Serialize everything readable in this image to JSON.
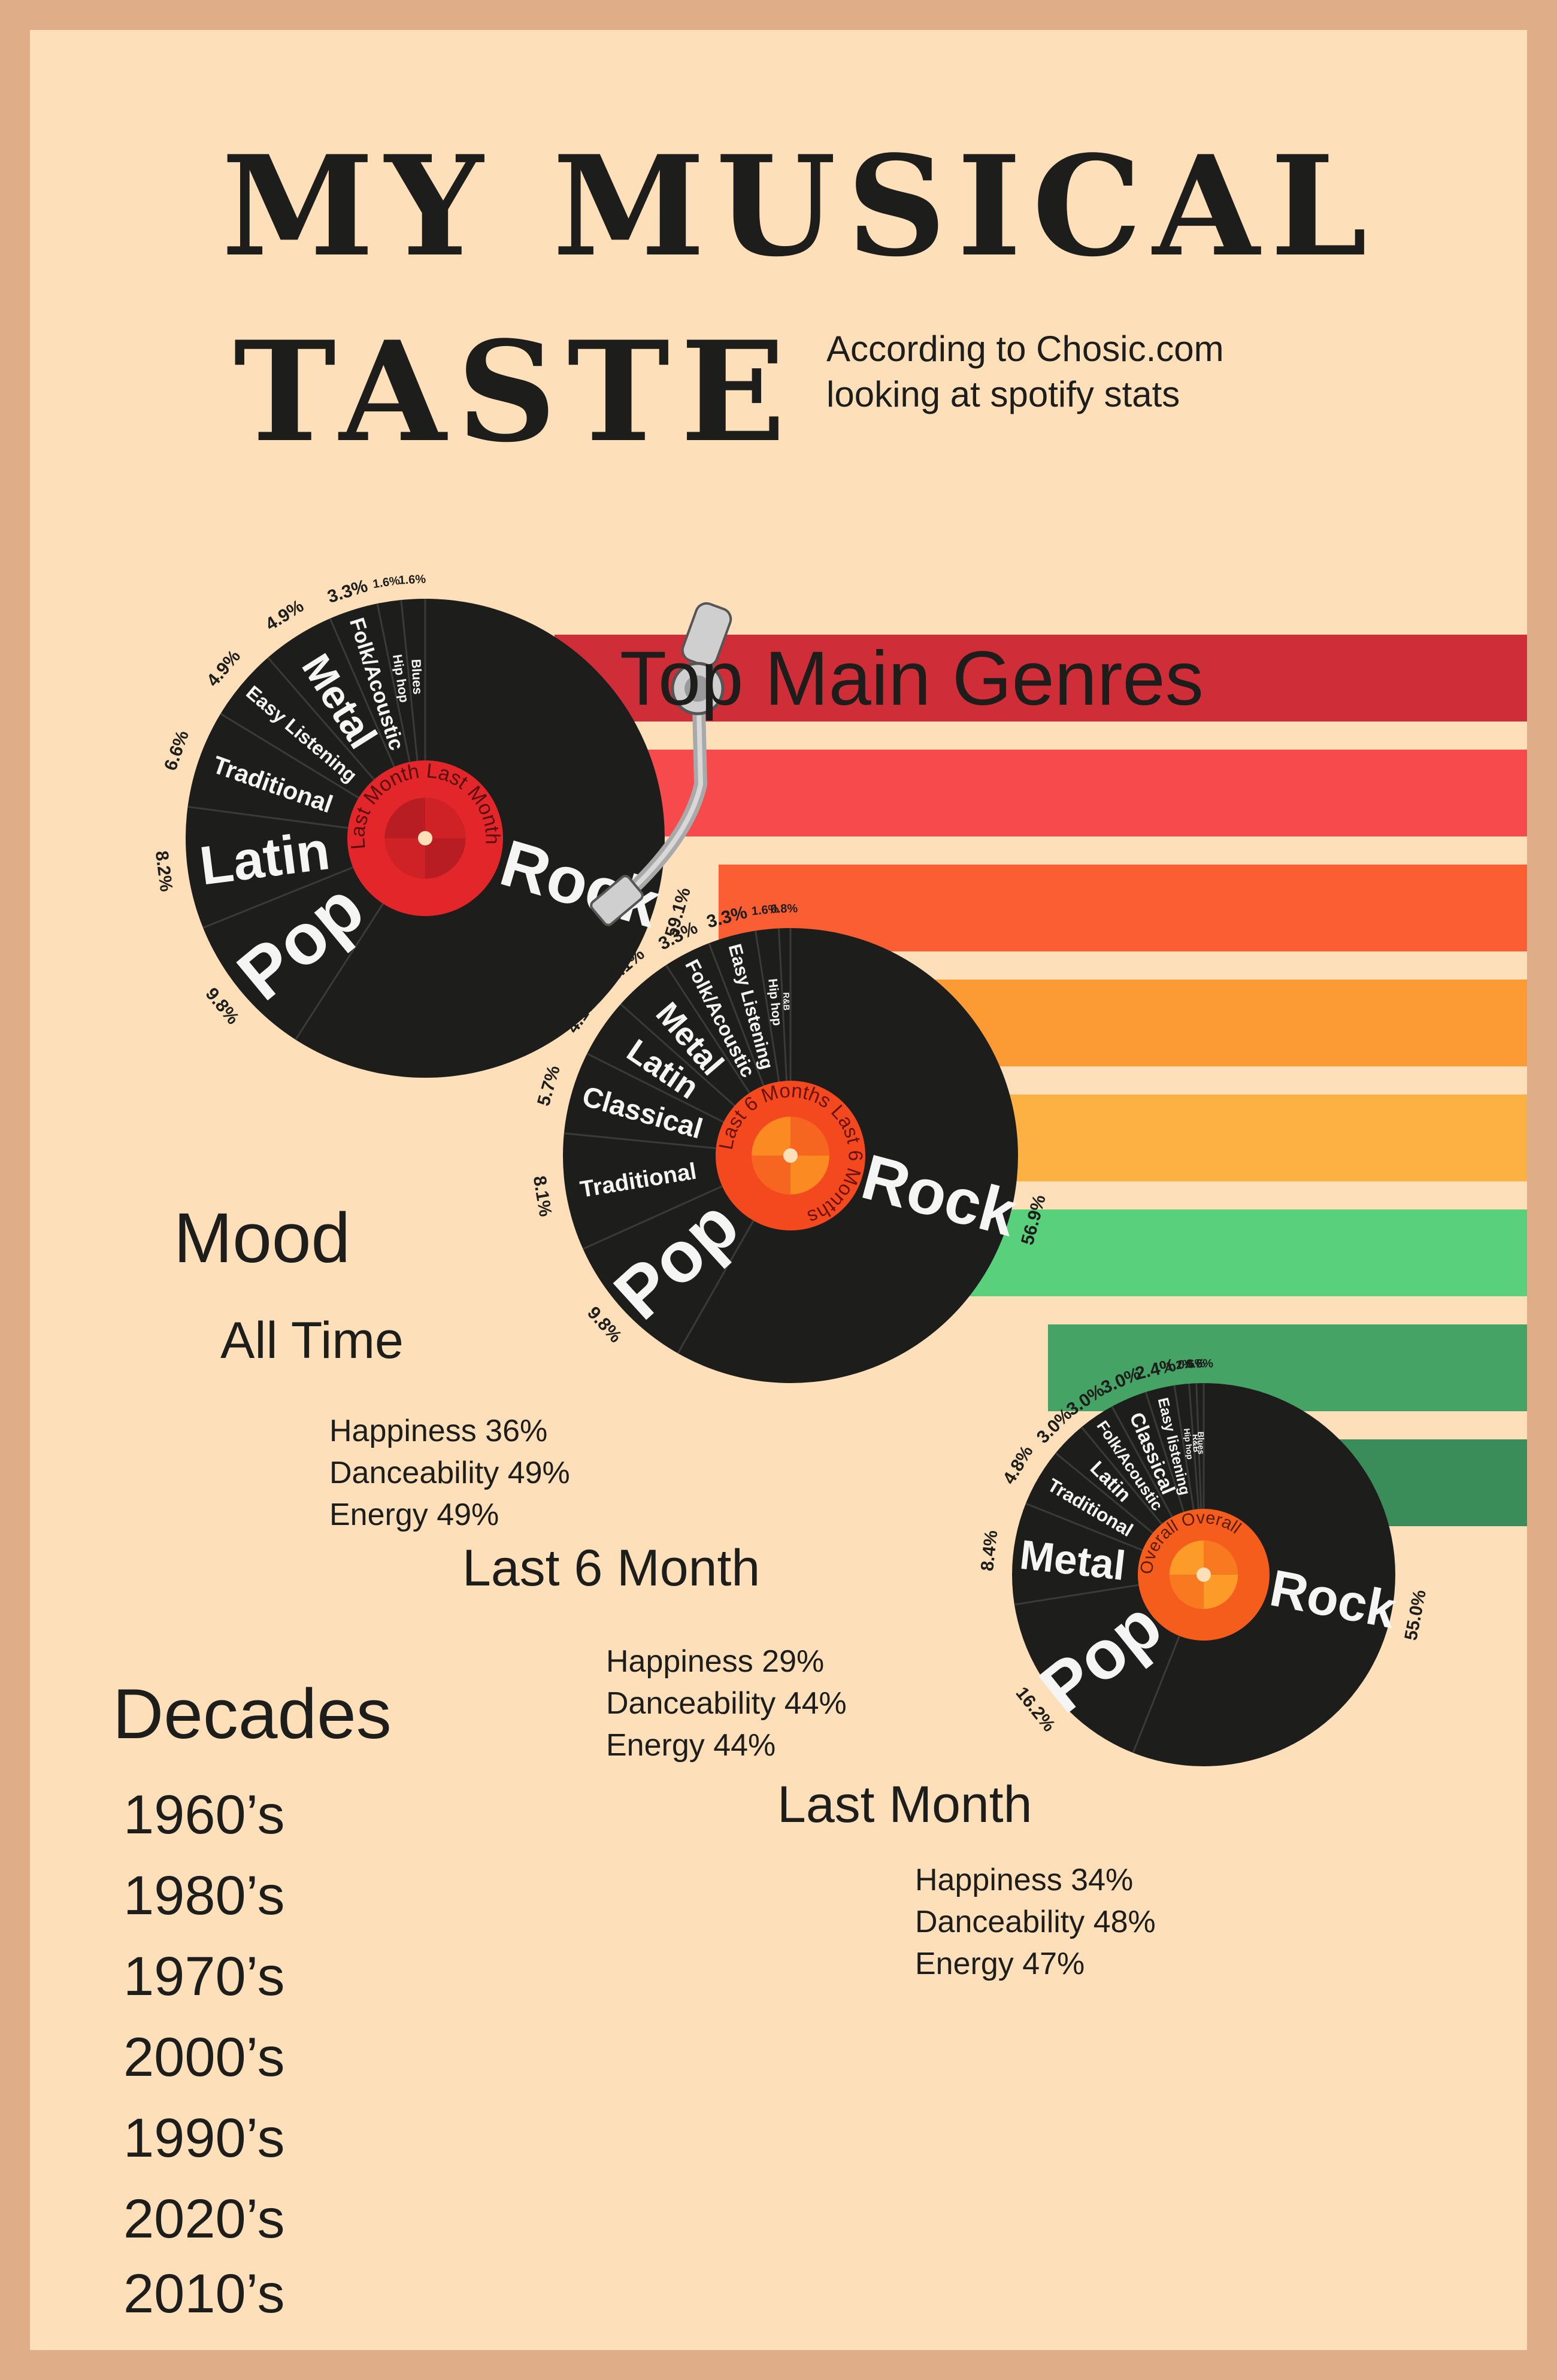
{
  "title": {
    "line1": "MY MUSICAL",
    "line2": "TASTE"
  },
  "subtitle": {
    "line1": "According to Chosic.com",
    "line2": "looking at spotify stats"
  },
  "colors": {
    "background": "#fde0b9",
    "frame": "#dfae88",
    "stripes": [
      "#cf2e38",
      "#f64a4c",
      "#fa5e32",
      "#fc9a33",
      "#fcb142",
      "#58d07c",
      "#44a365",
      "#3a8c58"
    ],
    "vinyl": "#1d1d1b",
    "label_colors": {
      "last_month": [
        "#e3262a",
        "#b71d22"
      ],
      "last_6_months": [
        "#f4481f",
        "#fb8a22"
      ],
      "overall": [
        "#f45d1c",
        "#fc9b27"
      ]
    }
  },
  "chart_data": {
    "type": "pie",
    "title": "Top Main Genres",
    "charts": [
      {
        "label": "Last Month",
        "slices": [
          {
            "genre": "Rock",
            "value": 59.1,
            "label": "59.1%"
          },
          {
            "genre": "Pop",
            "value": 9.8,
            "label": "9.8%"
          },
          {
            "genre": "Latin",
            "value": 8.2,
            "label": "8.2%"
          },
          {
            "genre": "Traditional",
            "value": 6.6,
            "label": "6.6%"
          },
          {
            "genre": "Easy Listening",
            "value": 4.9,
            "label": "4.9%"
          },
          {
            "genre": "Metal",
            "value": 4.9,
            "label": "4.9%"
          },
          {
            "genre": "Folk/Acoustic",
            "value": 3.3,
            "label": "3.3%"
          },
          {
            "genre": "Hip hop",
            "value": 1.6,
            "label": "1.6%"
          },
          {
            "genre": "Blues",
            "value": 1.6,
            "label": "1.6%"
          }
        ]
      },
      {
        "label": "Last 6 Months",
        "slices": [
          {
            "genre": "Rock",
            "value": 56.9,
            "label": "56.9%"
          },
          {
            "genre": "Pop",
            "value": 9.8,
            "label": "9.8%"
          },
          {
            "genre": "Traditional",
            "value": 8.1,
            "label": "8.1%"
          },
          {
            "genre": "Classical",
            "value": 5.7,
            "label": "5.7%"
          },
          {
            "genre": "Latin",
            "value": 4.1,
            "label": "4.1%"
          },
          {
            "genre": "Metal",
            "value": 4.1,
            "label": "4.1%"
          },
          {
            "genre": "Folk/Acoustic",
            "value": 3.3,
            "label": "3.3%"
          },
          {
            "genre": "Easy Listening",
            "value": 3.3,
            "label": "3.3%"
          },
          {
            "genre": "Hip hop",
            "value": 1.6,
            "label": "1.6%"
          },
          {
            "genre": "R&B",
            "value": 0.8,
            "label": "0.8%"
          }
        ]
      },
      {
        "label": "Overall",
        "slices": [
          {
            "genre": "Rock",
            "value": 55.0,
            "label": "55.0%"
          },
          {
            "genre": "Pop",
            "value": 16.2,
            "label": "16.2%"
          },
          {
            "genre": "Metal",
            "value": 8.4,
            "label": "8.4%"
          },
          {
            "genre": "Traditional",
            "value": 4.8,
            "label": "4.8%"
          },
          {
            "genre": "Latin",
            "value": 3.0,
            "label": "3.0%"
          },
          {
            "genre": "Folk/Acoustic",
            "value": 3.0,
            "label": "3.0%"
          },
          {
            "genre": "Classical",
            "value": 3.0,
            "label": "3.0%"
          },
          {
            "genre": "Easy listening",
            "value": 2.4,
            "label": "2.4%"
          },
          {
            "genre": "Hip hop",
            "value": 1.2,
            "label": "1.2%"
          },
          {
            "genre": "R&B",
            "value": 0.6,
            "label": "0.6%"
          },
          {
            "genre": "Blues",
            "value": 0.6,
            "label": "0.6%"
          }
        ]
      }
    ]
  },
  "mood": {
    "title": "Mood",
    "all_time": {
      "heading": "All Time",
      "happiness": "Happiness 36%",
      "danceability": "Danceability 49%",
      "energy": "Energy 49%"
    },
    "last_6_month": {
      "heading": "Last 6 Month",
      "happiness": "Happiness 29%",
      "danceability": "Danceability 44%",
      "energy": "Energy 44%"
    },
    "last_month": {
      "heading": "Last Month",
      "happiness": "Happiness 34%",
      "danceability": "Danceability 48%",
      "energy": "Energy 47%"
    }
  },
  "decades": {
    "title": "Decades",
    "items": [
      "1960’s",
      "1980’s",
      "1970’s",
      "2000’s",
      "1990’s",
      "2020’s",
      "2010’s"
    ]
  }
}
